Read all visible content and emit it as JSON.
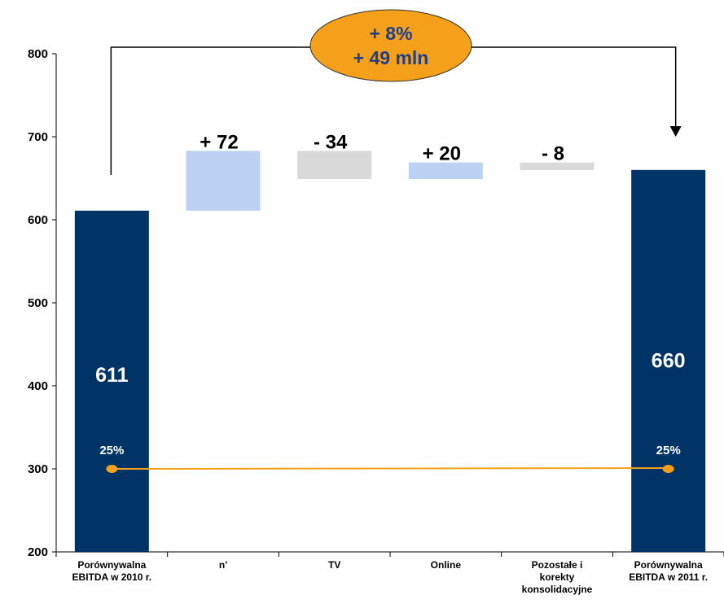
{
  "chart_data": {
    "type": "bar",
    "subtype": "waterfall",
    "categories": [
      [
        "Porównywalna",
        "EBITDA w 2010 r."
      ],
      [
        "n'"
      ],
      [
        "TV"
      ],
      [
        "Online"
      ],
      [
        "Pozostałe i",
        "korekty",
        "konsolidacyjne"
      ],
      [
        "Porównywalna",
        "EBITDA w 2011 r."
      ]
    ],
    "steps": [
      {
        "kind": "total",
        "start": 0,
        "end": 611,
        "label": "611",
        "color": "#003366"
      },
      {
        "kind": "delta",
        "start": 611,
        "end": 683,
        "label": "+ 72",
        "color": "#bcd2f2"
      },
      {
        "kind": "delta",
        "start": 683,
        "end": 649,
        "label": "- 34",
        "color": "#d9d9d9"
      },
      {
        "kind": "delta",
        "start": 649,
        "end": 669,
        "label": "+ 20",
        "color": "#bcd2f2"
      },
      {
        "kind": "delta",
        "start": 669,
        "end": 660,
        "label": "- 8",
        "color": "#d9d9d9"
      },
      {
        "kind": "total",
        "start": 0,
        "end": 660,
        "label": "660",
        "color": "#003366"
      }
    ],
    "margin_line": {
      "color": "#f5a01a",
      "points": [
        {
          "category_index": 0,
          "y": 300,
          "label": "25%"
        },
        {
          "category_index": 5,
          "y": 300,
          "label": "25%"
        }
      ]
    },
    "annotation": {
      "lines": [
        "+ 8%",
        "+ 49 mln"
      ],
      "fill": "#f5a01a",
      "text_color": "#1f3f8a",
      "from_category": 0,
      "to_category": 5
    },
    "ylim": [
      200,
      800
    ],
    "yticks": [
      "200",
      "300",
      "400",
      "500",
      "600",
      "700",
      "800"
    ],
    "grid": false,
    "legend": "none"
  }
}
